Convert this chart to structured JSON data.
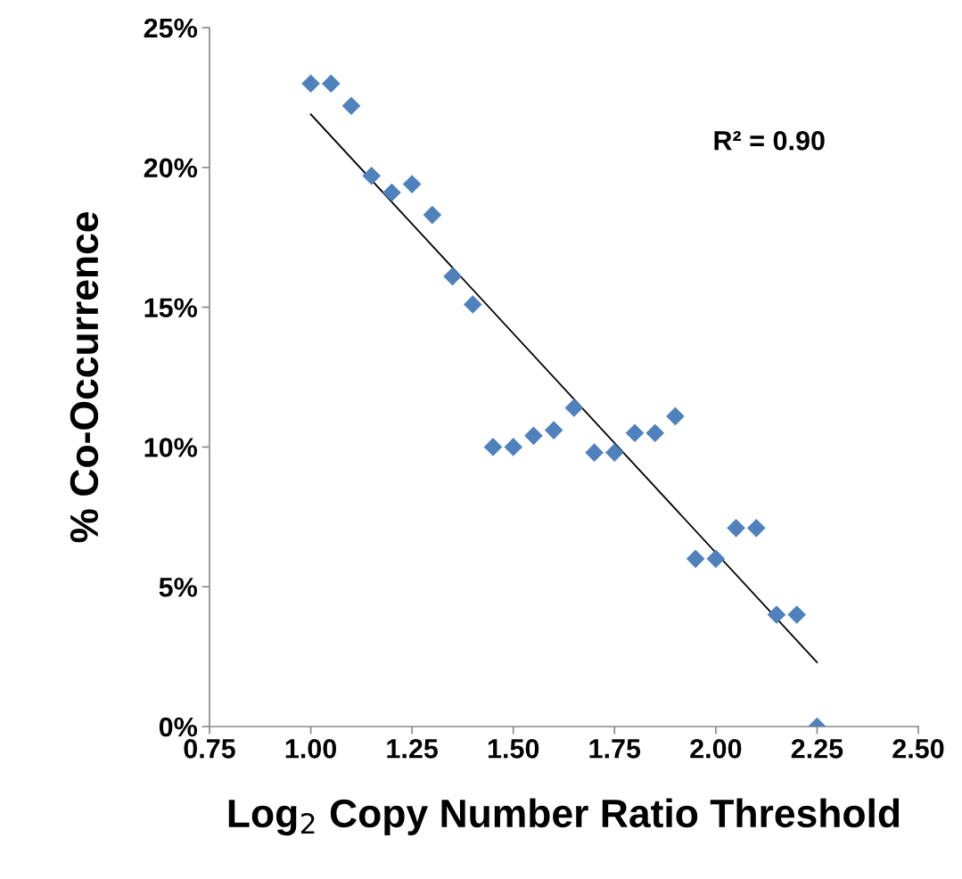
{
  "chart_data": {
    "type": "scatter",
    "xlabel": "Log$_{2}$ Copy Number Ratio Threshold",
    "ylabel": "% Co-Occurrence",
    "x": [
      1.0,
      1.05,
      1.1,
      1.15,
      1.2,
      1.25,
      1.3,
      1.35,
      1.4,
      1.45,
      1.5,
      1.55,
      1.6,
      1.65,
      1.7,
      1.75,
      1.8,
      1.85,
      1.9,
      1.95,
      2.0,
      2.05,
      2.1,
      2.15,
      2.2,
      2.25
    ],
    "series": [
      {
        "color": "#4f81bd",
        "marker": "diamond",
        "values": [
          23.0,
          23.0,
          22.2,
          19.7,
          19.1,
          19.4,
          18.3,
          16.1,
          15.1,
          10.0,
          10.0,
          10.4,
          10.6,
          11.4,
          9.8,
          9.8,
          10.5,
          10.5,
          11.1,
          6.0,
          6.0,
          7.1,
          7.1,
          4.0,
          4.0,
          0
        ]
      },
      {
        "type": "line",
        "color": "#000000",
        "x": [
          1.0,
          2.25
        ],
        "values": [
          21.9,
          2.3
        ],
        "line_style": "solid",
        "marker": "none"
      }
    ],
    "xlim": [
      0.75,
      2.5
    ],
    "xticks": [
      {
        "value": 0.75,
        "label": "0.75"
      },
      {
        "value": 1.0,
        "label": "1.00"
      },
      {
        "value": 1.25,
        "label": "1.25"
      },
      {
        "value": 1.5,
        "label": "1.50"
      },
      {
        "value": 1.75,
        "label": "1.75"
      },
      {
        "value": 2.0,
        "label": "2.00"
      },
      {
        "value": 2.25,
        "label": "2.25"
      },
      {
        "value": 2.5,
        "label": "2.50"
      }
    ],
    "ylim": [
      0,
      25
    ],
    "yticks": [
      {
        "value": 0,
        "label": "0%"
      },
      {
        "value": 5,
        "label": "5%"
      },
      {
        "value": 10,
        "label": "10%"
      },
      {
        "value": 15,
        "label": "15%"
      },
      {
        "value": 20,
        "label": "20%"
      },
      {
        "value": 25,
        "label": "25%"
      }
    ],
    "annotations": [
      "R² = 0.90"
    ],
    "grid": false,
    "legend": false
  }
}
